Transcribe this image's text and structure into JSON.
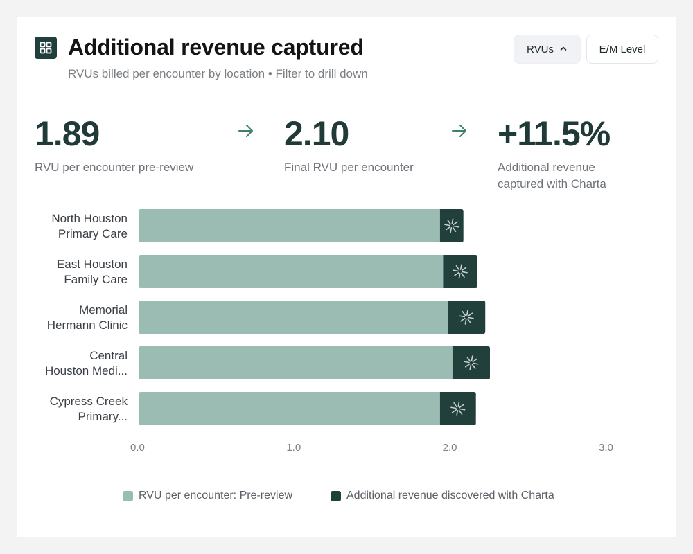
{
  "header": {
    "icon": "grid-icon",
    "title": "Additional revenue captured",
    "subtitle": "RVUs billed per encounter by location • Filter to drill down"
  },
  "toggles": {
    "rvus_label": "RVUs",
    "em_label": "E/M Level"
  },
  "stats": [
    {
      "value": "1.89",
      "label": "RVU per encounter pre-review"
    },
    {
      "value": "2.10",
      "label": "Final RVU per encounter"
    },
    {
      "value": "+11.5%",
      "label": "Additional revenue captured with Charta"
    }
  ],
  "colors": {
    "pre_review": "#9bbcb2",
    "additional": "#213f3b",
    "text_dark": "#1f3a37",
    "arrow": "#3f7f6e"
  },
  "chart_data": {
    "type": "bar",
    "orientation": "horizontal",
    "stacked": true,
    "categories": [
      [
        "North Houston",
        "Primary Care"
      ],
      [
        "East Houston",
        "Family Care"
      ],
      [
        "Memorial",
        "Hermann Clinic"
      ],
      [
        "Central",
        "Houston Medi..."
      ],
      [
        "Cypress Creek",
        "Primary..."
      ]
    ],
    "series": [
      {
        "name": "RVU per encounter: Pre-review",
        "values": [
          1.93,
          1.95,
          1.98,
          2.01,
          1.93
        ]
      },
      {
        "name": "Additional revenue discovered with Charta",
        "values": [
          0.15,
          0.22,
          0.24,
          0.24,
          0.23
        ]
      }
    ],
    "xlim": [
      0,
      3
    ],
    "xticks": [
      "0.0",
      "1.0",
      "2.0",
      "3.0"
    ],
    "xtick_values": [
      0,
      1,
      2,
      3
    ],
    "legend_position": "bottom"
  }
}
